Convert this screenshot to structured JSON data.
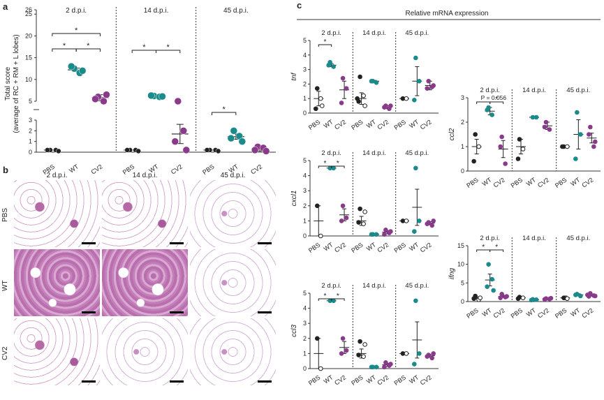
{
  "colors": {
    "pbs": "#222222",
    "wt": "#1a8a8a",
    "cv2": "#8a3a8a"
  },
  "panel_letters": {
    "a": "a",
    "b": "b",
    "c": "c"
  },
  "panel_b": {
    "timepoints": [
      "2 d.p.i.",
      "14 d.p.i.",
      "45 d.p.i."
    ],
    "rows": [
      "PBS",
      "WT",
      "CV2"
    ]
  },
  "panel_c": {
    "title": "Relative mRNA expression"
  },
  "chart_data": [
    {
      "type": "scatter",
      "panel": "a",
      "ylabel_line1": "Total score",
      "ylabel_line2": "(average of RC + RM + L lobes)",
      "ylim_broken": [
        [
          0,
          3
        ],
        [
          5,
          26
        ]
      ],
      "yticks_lower": [
        "0",
        "1",
        "2",
        "3"
      ],
      "yticks_upper": [
        "5",
        "10",
        "15",
        "20",
        "25",
        "26"
      ],
      "yticks_upper_vals": [
        5,
        10,
        15,
        20,
        25,
        26
      ],
      "groups": [
        "2 d.p.i.",
        "14 d.p.i.",
        "45 d.p.i."
      ],
      "categories": [
        "PBS",
        "WT",
        "CV2"
      ],
      "data": [
        [
          [
            0.2,
            0.2,
            0.2,
            0.1
          ],
          [
            12.5,
            11.5,
            13,
            12
          ],
          [
            6,
            5,
            5.5,
            6.5
          ]
        ],
        [
          [
            0.2,
            0.2,
            0.2,
            0.1
          ],
          [
            6.2,
            6,
            6.3,
            6.1
          ],
          [
            4.5,
            2,
            1,
            0.2
          ]
        ],
        [
          [
            0.2,
            0.2,
            0.2,
            0.1
          ],
          [
            2,
            1.5,
            1.3,
            1
          ],
          [
            0.5,
            0.4,
            0.2,
            0.1
          ]
        ]
      ],
      "means": [
        [
          0.2,
          12.2,
          5.8
        ],
        [
          0.2,
          6.1,
          1.7
        ],
        [
          0.2,
          1.45,
          0.3
        ]
      ],
      "errors": [
        [
          0,
          0.4,
          0.7
        ],
        [
          0,
          0.15,
          0.9
        ],
        [
          0,
          0.25,
          0.2
        ]
      ],
      "significance": "*"
    },
    {
      "type": "scatter",
      "panel": "c",
      "gene": "tnf",
      "ylim": [
        0,
        5
      ],
      "yticks": [
        "0",
        "1",
        "2",
        "3",
        "4",
        "5"
      ],
      "groups": [
        "2 d.p.i.",
        "14 d.p.i.",
        "45 d.p.i."
      ],
      "categories": [
        "PBS",
        "WT",
        "CV2"
      ],
      "data": [
        [
          [
            1.7,
            1,
            0.3,
            0.5
          ],
          [
            3.5,
            3.2,
            3.3
          ],
          [
            2.4,
            1.7,
            0.7
          ]
        ],
        [
          [
            2.5,
            1.2,
            0.8,
            0.5,
            1
          ],
          [
            2.2,
            2.1,
            2.2
          ],
          [
            0.5,
            0.3,
            0.4,
            0.5
          ]
        ],
        [
          [
            1,
            1
          ],
          [
            3.8,
            2.2,
            0.9
          ],
          [
            2.2,
            1.8,
            1.7,
            1.9
          ]
        ]
      ],
      "means": [
        [
          1,
          3.3,
          1.6
        ],
        [
          1,
          2.2,
          0.4
        ],
        [
          1,
          2.2,
          1.9
        ]
      ],
      "errors": [
        [
          0.5,
          0.1,
          0.6
        ],
        [
          0.4,
          0.05,
          0.1
        ],
        [
          0,
          1,
          0.3
        ]
      ]
    },
    {
      "type": "scatter",
      "panel": "c",
      "gene": "cxcl1",
      "ylim": [
        0,
        5
      ],
      "yticks": [
        "0",
        "1",
        "2",
        "3",
        "4",
        "5"
      ],
      "groups": [
        "2 d.p.i.",
        "14 d.p.i.",
        "45 d.p.i."
      ],
      "categories": [
        "PBS",
        "WT",
        "CV2"
      ],
      "data": [
        [
          [
            2,
            0
          ],
          [
            4.5,
            4.5
          ],
          [
            2,
            1.2,
            1
          ]
        ],
        [
          [
            1.8,
            0.8,
            0.9,
            1.6
          ],
          [
            0.1,
            0.1,
            0.1
          ],
          [
            0.4,
            0.2,
            0.1,
            0.3
          ]
        ],
        [
          [
            1,
            1
          ],
          [
            4.5,
            1,
            0.3
          ],
          [
            0.9,
            0.7,
            0.8,
            1
          ]
        ]
      ],
      "means": [
        [
          1,
          4.5,
          1.4
        ],
        [
          1,
          0.1,
          0.25
        ],
        [
          1,
          1.9,
          0.85
        ]
      ],
      "errors": [
        [
          1,
          0,
          0.4
        ],
        [
          0.3,
          0,
          0.1
        ],
        [
          0,
          1.2,
          0.1
        ]
      ]
    },
    {
      "type": "scatter",
      "panel": "c",
      "gene": "ccl3",
      "ylim": [
        0,
        5
      ],
      "yticks": [
        "0",
        "1",
        "2",
        "3",
        "4",
        "5"
      ],
      "groups": [
        "2 d.p.i.",
        "14 d.p.i.",
        "45 d.p.i."
      ],
      "categories": [
        "PBS",
        "WT",
        "CV2"
      ],
      "data": [
        [
          [
            2,
            0
          ],
          [
            4.5,
            4.5
          ],
          [
            2,
            1.2,
            1
          ]
        ],
        [
          [
            1.8,
            0.8,
            0.9,
            1.6
          ],
          [
            0.1,
            0.1,
            0.1
          ],
          [
            0.4,
            0.2,
            0.1,
            0.3
          ]
        ],
        [
          [
            1,
            1
          ],
          [
            4.5,
            1,
            0.3
          ],
          [
            0.9,
            0.7,
            0.8,
            1
          ]
        ]
      ],
      "means": [
        [
          1,
          4.5,
          1.4
        ],
        [
          1,
          0.1,
          0.25
        ],
        [
          1,
          1.9,
          0.85
        ]
      ],
      "errors": [
        [
          1,
          0,
          0.4
        ],
        [
          0.3,
          0,
          0.1
        ],
        [
          0,
          1.2,
          0.1
        ]
      ]
    },
    {
      "type": "scatter",
      "panel": "c",
      "gene": "ccl2",
      "ylim": [
        0,
        3
      ],
      "yticks": [
        "0",
        "1",
        "2",
        "3"
      ],
      "annotation": "P = 0.056",
      "groups": [
        "2 d.p.i.",
        "14 d.p.i.",
        "45 d.p.i."
      ],
      "categories": [
        "PBS",
        "WT",
        "CV2"
      ],
      "data": [
        [
          [
            1.5,
            1,
            0.4
          ],
          [
            2.6,
            2.3,
            2.5
          ],
          [
            1.4,
            0.3,
            1
          ]
        ],
        [
          [
            1.3,
            0.9,
            0.5
          ],
          [
            2.2,
            2.2
          ],
          [
            2,
            1.7,
            1.8
          ]
        ],
        [
          [
            1,
            1,
            1
          ],
          [
            2.4,
            1.5,
            0.5
          ],
          [
            1.8,
            1,
            1.5,
            1.2
          ]
        ]
      ],
      "means": [
        [
          1,
          2.45,
          0.9
        ],
        [
          1,
          2.2,
          1.85
        ],
        [
          1,
          1.5,
          1.35
        ]
      ],
      "errors": [
        [
          0.3,
          0.15,
          0.35
        ],
        [
          0.3,
          0,
          0.15
        ],
        [
          0,
          0.6,
          0.2
        ]
      ]
    },
    {
      "type": "scatter",
      "panel": "c",
      "gene": "ifng",
      "ylim": [
        0,
        15
      ],
      "yticks": [
        "0",
        "5",
        "10",
        "15"
      ],
      "groups": [
        "2 d.p.i.",
        "14 d.p.i.",
        "45 d.p.i."
      ],
      "categories": [
        "PBS",
        "WT",
        "CV2"
      ],
      "data": [
        [
          [
            1.5,
            0.5,
            0.8,
            1
          ],
          [
            10,
            6,
            4,
            3
          ],
          [
            2,
            1.2,
            1,
            1.4
          ]
        ],
        [
          [
            1.2,
            1,
            0.8
          ],
          [
            0.6,
            0.5,
            0.4
          ],
          [
            0.8,
            0.7,
            0.6,
            0.9
          ]
        ],
        [
          [
            1,
            0.8
          ],
          [
            2,
            1.5,
            1.8
          ],
          [
            2.2,
            1.6,
            1.4,
            1.5,
            1.8
          ]
        ]
      ],
      "means": [
        [
          1,
          5.8,
          1.4
        ],
        [
          1,
          0.5,
          0.75
        ],
        [
          1,
          1.8,
          1.7
        ]
      ],
      "errors": [
        [
          0.3,
          1.6,
          0.3
        ],
        [
          0.1,
          0.05,
          0.05
        ],
        [
          0.5,
          0.3,
          0.2
        ]
      ]
    }
  ]
}
